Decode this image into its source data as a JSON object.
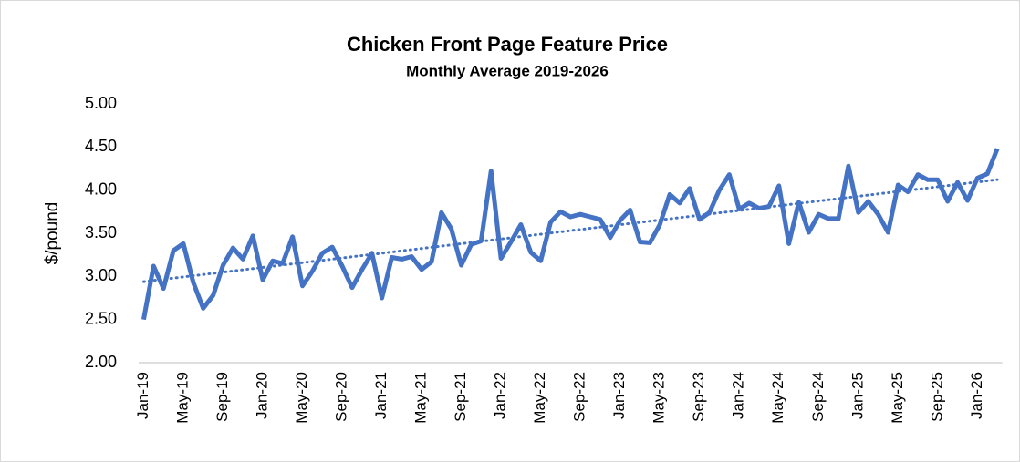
{
  "chart_data": {
    "type": "line",
    "title": "Chicken Front Page Feature Price",
    "subtitle": "Monthly Average 2019-2026",
    "y_label": "$/pound",
    "categories": [
      "Jan-19",
      null,
      null,
      null,
      "May-19",
      null,
      null,
      null,
      "Sep-19",
      null,
      null,
      null,
      "Jan-20",
      null,
      null,
      null,
      "May-20",
      null,
      null,
      null,
      "Sep-20",
      null,
      null,
      null,
      "Jan-21",
      null,
      null,
      null,
      "May-21",
      null,
      null,
      null,
      "Sep-21",
      null,
      null,
      null,
      "Jan-22",
      null,
      null,
      null,
      "May-22",
      null,
      null,
      null,
      "Sep-22",
      null,
      null,
      null,
      "Jan-23",
      null,
      null,
      null,
      "May-23",
      null,
      null,
      null,
      "Sep-23",
      null,
      null,
      null,
      "Jan-24",
      null,
      null,
      null,
      "May-24",
      null,
      null,
      null,
      "Sep-24",
      null,
      null,
      null,
      "Jan-25",
      null,
      null,
      null,
      "May-25",
      null,
      null,
      null,
      "Sep-25",
      null,
      null,
      null,
      "Jan-26",
      null,
      null
    ],
    "values": [
      2.5,
      3.12,
      2.86,
      3.3,
      3.38,
      2.93,
      2.63,
      2.78,
      3.13,
      3.33,
      3.2,
      3.47,
      2.96,
      3.18,
      3.15,
      3.46,
      2.89,
      3.06,
      3.27,
      3.34,
      3.12,
      2.87,
      3.08,
      3.27,
      2.75,
      3.22,
      3.2,
      3.23,
      3.08,
      3.17,
      3.74,
      3.55,
      3.13,
      3.37,
      3.41,
      4.22,
      3.21,
      3.4,
      3.6,
      3.28,
      3.18,
      3.63,
      3.75,
      3.69,
      3.72,
      3.69,
      3.66,
      3.45,
      3.65,
      3.77,
      3.4,
      3.39,
      3.6,
      3.95,
      3.85,
      4.02,
      3.66,
      3.74,
      4.0,
      4.18,
      3.78,
      3.85,
      3.79,
      3.81,
      4.05,
      3.38,
      3.86,
      3.51,
      3.72,
      3.67,
      3.67,
      4.28,
      3.74,
      3.87,
      3.72,
      3.51,
      4.06,
      3.98,
      4.18,
      4.12,
      4.12,
      3.87,
      4.09,
      3.88,
      4.14,
      4.19,
      4.48
    ],
    "color": "#4472c4",
    "trendline": "linear",
    "ylim": [
      2,
      5
    ],
    "yticks": [
      {
        "value": 2,
        "label": "2.00"
      },
      {
        "value": 2.5,
        "label": "2.50"
      },
      {
        "value": 3,
        "label": "3.00"
      },
      {
        "value": 3.5,
        "label": "3.50"
      },
      {
        "value": 4,
        "label": "4.00"
      },
      {
        "value": 4.5,
        "label": "4.50"
      },
      {
        "value": 5,
        "label": "5.00"
      }
    ],
    "grid": false
  }
}
